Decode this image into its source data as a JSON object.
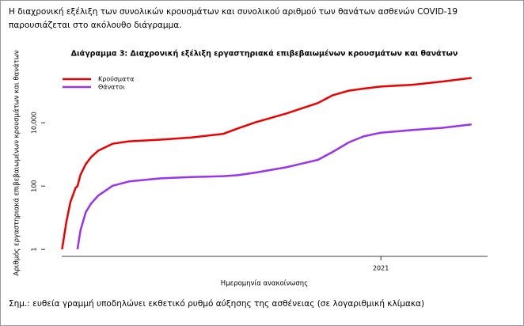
{
  "intro": "Η διαχρονική εξέλιξη των συνολικών κρουσμάτων και συνολικού αριθμού των θανάτων ασθενών COVID-19 παρουσιάζεται στο ακόλουθο διάγραμμα.",
  "note": "Σημ.: ευθεία γραμμή υποδηλώνει εκθετικό ρυθμό αύξησης της ασθένειας (σε λογαριθμική κλίμακα)",
  "chart_data": {
    "type": "line",
    "title": "Διάγραμμα 3: Διαχρονική εξέλιξη εργαστηριακά επιβεβαιωμένων κρουσμάτων και θανάτων",
    "x_label": "Ημερομηνία ανακοίνωσης",
    "y_label": "Αριθμός εργαστηριακά επιβεβαιωμένων κρουσμάτων και θανάτων",
    "x": [
      2020.153,
      2020.164,
      2020.175,
      2020.189,
      2020.194,
      2020.202,
      2020.216,
      2020.23,
      2020.249,
      2020.287,
      2020.331,
      2020.415,
      2020.497,
      2020.582,
      2020.62,
      2020.667,
      2020.749,
      2020.833,
      2020.872,
      2020.915,
      2020.954,
      2021.0,
      2021.085,
      2021.162,
      2021.241
    ],
    "series": [
      {
        "name": "Κρούσματα",
        "color": "#ee0000",
        "values": [
          1,
          7,
          31,
          89,
          99,
          228,
          495,
          821,
          1314,
          2170,
          2591,
          2917,
          3432,
          4477,
          6632,
          10317,
          19613,
          42000,
          74000,
          103000,
          120000,
          138850,
          159000,
          200000,
          260000
        ]
      },
      {
        "name": "Θάνατοι",
        "color": "#9933ee",
        "values": [
          null,
          null,
          null,
          null,
          1,
          4,
          15,
          28,
          50,
          102,
          140,
          175,
          192,
          206,
          220,
          266,
          393,
          673,
          1200,
          2406,
          3700,
          4838,
          5900,
          6900,
          8800
        ]
      }
    ],
    "xlim": [
      2020.11,
      2021.29
    ],
    "xticks": [
      2021
    ],
    "ylim": [
      0.6,
      450000
    ],
    "yticks": [
      1,
      100,
      {
        "value": 10000,
        "label": "10,000"
      }
    ],
    "y_log": true,
    "legend": "top-left"
  }
}
